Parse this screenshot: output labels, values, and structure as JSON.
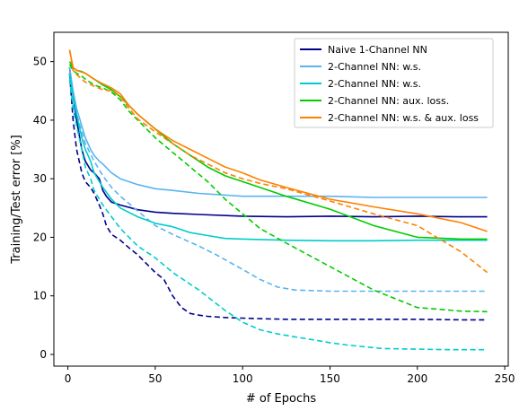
{
  "chart_data": {
    "type": "line",
    "xlabel": "# of Epochs",
    "ylabel": "Training/Test error [%]",
    "xlim": [
      -8,
      252
    ],
    "ylim": [
      -2,
      55
    ],
    "xticks": [
      0,
      50,
      100,
      150,
      200,
      250
    ],
    "yticks": [
      0,
      10,
      20,
      30,
      40,
      50
    ],
    "grid": false,
    "legend_position": "top-right",
    "legend": [
      {
        "label": "Naive 1-Channel NN",
        "color": "#00008b"
      },
      {
        "label": "2-Channel NN: w.s.",
        "color": "#5ab4f0"
      },
      {
        "label": "2-Channel NN: w.s.",
        "color": "#00cccc"
      },
      {
        "label": "2-Channel NN: aux. loss.",
        "color": "#00cc00"
      },
      {
        "label": "2-Channel NN: w.s. & aux. loss",
        "color": "#ff8000"
      }
    ],
    "series": [
      {
        "color": "#00008b",
        "style": "solid",
        "x": [
          1,
          3,
          5,
          8,
          10,
          13,
          15,
          18,
          20,
          22,
          25,
          30,
          40,
          50,
          60,
          75,
          100,
          125,
          150,
          175,
          200,
          225,
          240
        ],
        "y": [
          49,
          44,
          40,
          35,
          33,
          31.5,
          31,
          30,
          28,
          27,
          26,
          25.5,
          24.7,
          24.3,
          24.1,
          23.9,
          23.6,
          23.5,
          23.6,
          23.5,
          23.6,
          23.5,
          23.5
        ]
      },
      {
        "color": "#00008b",
        "style": "dashed",
        "x": [
          1,
          3,
          5,
          8,
          10,
          13,
          15,
          18,
          20,
          22,
          25,
          30,
          35,
          40,
          45,
          50,
          55,
          60,
          65,
          70,
          75,
          80,
          90,
          100,
          110,
          125,
          150,
          175,
          200,
          225,
          240
        ],
        "y": [
          48,
          40,
          35,
          31,
          29.5,
          28.5,
          27.5,
          25.5,
          24,
          22,
          20.5,
          19.5,
          18.2,
          17,
          15.5,
          14,
          12.8,
          10,
          8,
          7,
          6.7,
          6.5,
          6.3,
          6.2,
          6.1,
          6,
          6,
          6,
          6,
          5.9,
          5.9
        ]
      },
      {
        "color": "#5ab4f0",
        "style": "solid",
        "x": [
          1,
          3,
          5,
          8,
          10,
          13,
          15,
          18,
          20,
          25,
          30,
          40,
          50,
          60,
          75,
          100,
          125,
          150,
          175,
          200,
          225,
          240
        ],
        "y": [
          49,
          45,
          42,
          39,
          37,
          35,
          34,
          33,
          32.5,
          31,
          30,
          29,
          28.3,
          28,
          27.5,
          27,
          27,
          27,
          26.8,
          26.8,
          26.8,
          26.8
        ]
      },
      {
        "color": "#5ab4f0",
        "style": "dashed",
        "x": [
          1,
          3,
          5,
          8,
          10,
          15,
          20,
          25,
          30,
          40,
          50,
          60,
          75,
          85,
          100,
          110,
          120,
          130,
          140,
          150,
          175,
          200,
          225,
          240
        ],
        "y": [
          48,
          44,
          41,
          38,
          36,
          33,
          30.5,
          28.5,
          27,
          24.5,
          22,
          20.5,
          18.5,
          17,
          14.5,
          12.8,
          11.5,
          11,
          10.9,
          10.8,
          10.8,
          10.8,
          10.8,
          10.8
        ]
      },
      {
        "color": "#00cccc",
        "style": "solid",
        "x": [
          1,
          3,
          5,
          8,
          10,
          13,
          15,
          18,
          20,
          25,
          30,
          40,
          50,
          60,
          70,
          80,
          90,
          100,
          125,
          150,
          175,
          200,
          225,
          240
        ],
        "y": [
          48,
          44,
          41,
          37,
          35,
          33,
          31,
          29.5,
          28.5,
          26.5,
          25,
          23.5,
          22.4,
          21.8,
          20.8,
          20.3,
          19.8,
          19.7,
          19.5,
          19.4,
          19.4,
          19.5,
          19.5,
          19.5
        ]
      },
      {
        "color": "#00cccc",
        "style": "dashed",
        "x": [
          1,
          3,
          5,
          8,
          10,
          13,
          15,
          18,
          20,
          25,
          30,
          35,
          40,
          50,
          60,
          75,
          90,
          100,
          110,
          120,
          130,
          140,
          150,
          160,
          170,
          180,
          200,
          220,
          240
        ],
        "y": [
          47,
          42,
          39,
          35,
          32,
          30,
          28,
          26.5,
          25.5,
          23.5,
          21.5,
          20,
          18.5,
          16.5,
          14,
          11,
          7.5,
          5.5,
          4.2,
          3.5,
          3,
          2.5,
          2,
          1.6,
          1.3,
          1,
          0.9,
          0.8,
          0.8
        ]
      },
      {
        "color": "#00cc00",
        "style": "solid",
        "x": [
          1,
          3,
          5,
          8,
          10,
          15,
          20,
          25,
          30,
          35,
          40,
          50,
          60,
          70,
          80,
          90,
          100,
          110,
          125,
          150,
          175,
          200,
          225,
          240
        ],
        "y": [
          50,
          49,
          48.5,
          48.3,
          48,
          47,
          46,
          45.2,
          44,
          42.5,
          41,
          38.5,
          36,
          34,
          32,
          30.5,
          29.5,
          28.5,
          27,
          24.8,
          22,
          20,
          19.7,
          19.7
        ]
      },
      {
        "color": "#00cc00",
        "style": "dashed",
        "x": [
          1,
          3,
          5,
          8,
          10,
          15,
          20,
          25,
          30,
          35,
          40,
          50,
          60,
          70,
          80,
          90,
          100,
          110,
          125,
          150,
          175,
          200,
          225,
          240
        ],
        "y": [
          49.5,
          48.5,
          48,
          47.5,
          47,
          46,
          45.5,
          44.8,
          43.5,
          41.5,
          40,
          37,
          34.5,
          32,
          29.5,
          26.5,
          24,
          21.5,
          19,
          15,
          11,
          8,
          7.4,
          7.3
        ]
      },
      {
        "color": "#ff8000",
        "style": "solid",
        "x": [
          1,
          3,
          5,
          8,
          10,
          15,
          20,
          25,
          30,
          35,
          40,
          50,
          60,
          70,
          80,
          90,
          100,
          110,
          125,
          150,
          175,
          200,
          225,
          240
        ],
        "y": [
          52,
          49,
          48.5,
          48.2,
          48,
          47,
          46.2,
          45.5,
          44.5,
          42.5,
          41,
          38.5,
          36.5,
          35,
          33.5,
          32,
          31,
          29.8,
          28.5,
          26.5,
          25.2,
          24,
          22.5,
          21
        ]
      },
      {
        "color": "#ff8000",
        "style": "dashed",
        "x": [
          1,
          3,
          5,
          8,
          10,
          15,
          20,
          25,
          30,
          35,
          40,
          50,
          60,
          70,
          80,
          90,
          100,
          110,
          125,
          150,
          175,
          200,
          225,
          240
        ],
        "y": [
          52,
          48.5,
          47.8,
          47,
          46.5,
          45.8,
          45.2,
          45,
          44,
          42,
          40.2,
          38,
          36,
          34,
          32.5,
          31,
          30,
          29.2,
          28.3,
          26.2,
          24,
          22,
          17.5,
          14
        ]
      }
    ]
  }
}
